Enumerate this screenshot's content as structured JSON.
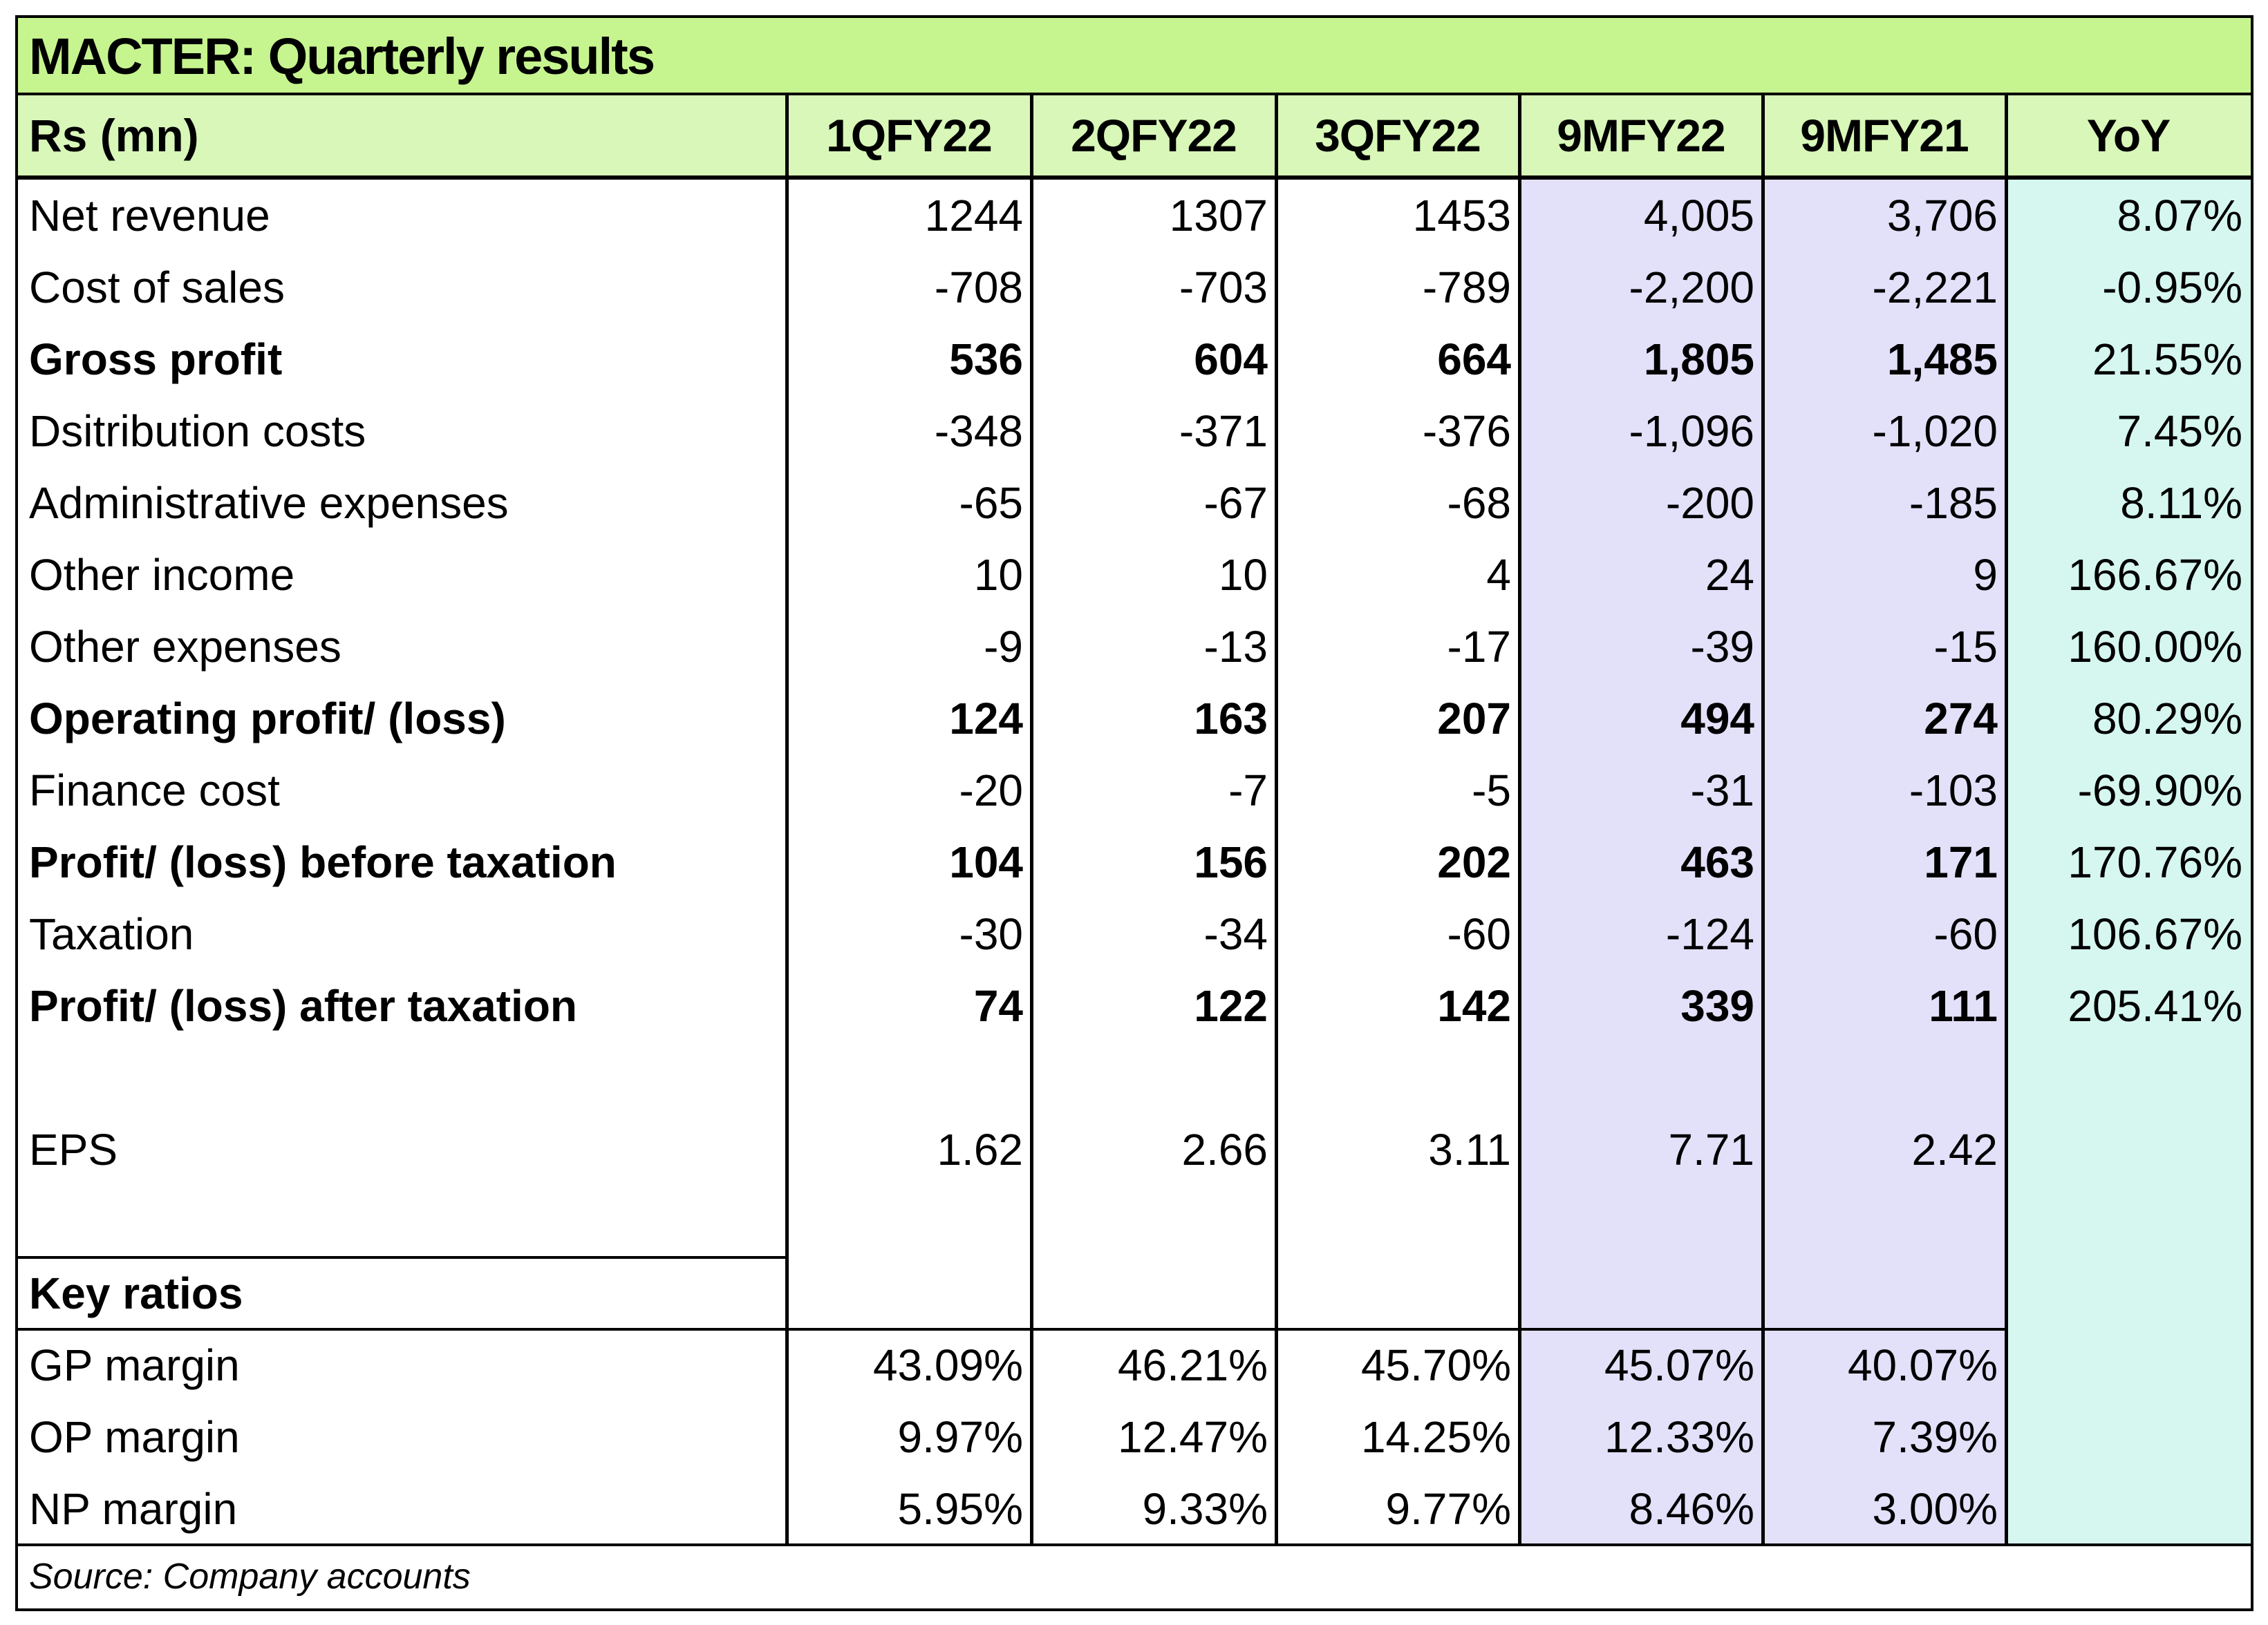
{
  "title": "MACTER: Quarterly results",
  "header": {
    "label": "Rs (mn)",
    "columns": [
      "1QFY22",
      "2QFY22",
      "3QFY22",
      "9MFY22",
      "9MFY21",
      "YoY"
    ]
  },
  "rows": [
    {
      "label": "Net revenue",
      "bold": false,
      "values": [
        "1244",
        "1307",
        "1453",
        "4,005",
        "3,706",
        "8.07%"
      ]
    },
    {
      "label": "Cost of sales",
      "bold": false,
      "values": [
        "-708",
        "-703",
        "-789",
        "-2,200",
        "-2,221",
        "-0.95%"
      ]
    },
    {
      "label": "Gross profit",
      "bold": true,
      "values": [
        "536",
        "604",
        "664",
        "1,805",
        "1,485",
        "21.55%"
      ]
    },
    {
      "label": "Dsitribution costs",
      "bold": false,
      "values": [
        "-348",
        "-371",
        "-376",
        "-1,096",
        "-1,020",
        "7.45%"
      ]
    },
    {
      "label": "Administrative expenses",
      "bold": false,
      "values": [
        "-65",
        "-67",
        "-68",
        "-200",
        "-185",
        "8.11%"
      ]
    },
    {
      "label": "Other income",
      "bold": false,
      "values": [
        "10",
        "10",
        "4",
        "24",
        "9",
        "166.67%"
      ]
    },
    {
      "label": "Other expenses",
      "bold": false,
      "values": [
        "-9",
        "-13",
        "-17",
        "-39",
        "-15",
        "160.00%"
      ]
    },
    {
      "label": "Operating profit/ (loss)",
      "bold": true,
      "values": [
        "124",
        "163",
        "207",
        "494",
        "274",
        "80.29%"
      ]
    },
    {
      "label": "Finance cost",
      "bold": false,
      "values": [
        "-20",
        "-7",
        "-5",
        "-31",
        "-103",
        "-69.90%"
      ]
    },
    {
      "label": "Profit/ (loss) before taxation",
      "bold": true,
      "values": [
        "104",
        "156",
        "202",
        "463",
        "171",
        "170.76%"
      ]
    },
    {
      "label": "Taxation",
      "bold": false,
      "values": [
        "-30",
        "-34",
        "-60",
        "-124",
        "-60",
        "106.67%"
      ]
    },
    {
      "label": "Profit/ (loss) after taxation",
      "bold": true,
      "values": [
        "74",
        "122",
        "142",
        "339",
        "111",
        "205.41%"
      ]
    }
  ],
  "eps": {
    "label": "EPS",
    "values": [
      "1.62",
      "2.66",
      "3.11",
      "7.71",
      "2.42"
    ]
  },
  "key_ratios": {
    "label": "Key ratios",
    "rows": [
      {
        "label": "GP margin",
        "values": [
          "43.09%",
          "46.21%",
          "45.70%",
          "45.07%",
          "40.07%"
        ]
      },
      {
        "label": "OP margin",
        "values": [
          "9.97%",
          "12.47%",
          "14.25%",
          "12.33%",
          "7.39%"
        ]
      },
      {
        "label": "NP margin",
        "values": [
          "5.95%",
          "9.33%",
          "9.77%",
          "8.46%",
          "3.00%"
        ]
      }
    ]
  },
  "source": "Source: Company accounts",
  "colors": {
    "title_band": "#c6f58f",
    "header_band": "#d8f7b8",
    "nine_month_columns": "#e3e0fa",
    "yoy_column": "#d6f7ef"
  }
}
